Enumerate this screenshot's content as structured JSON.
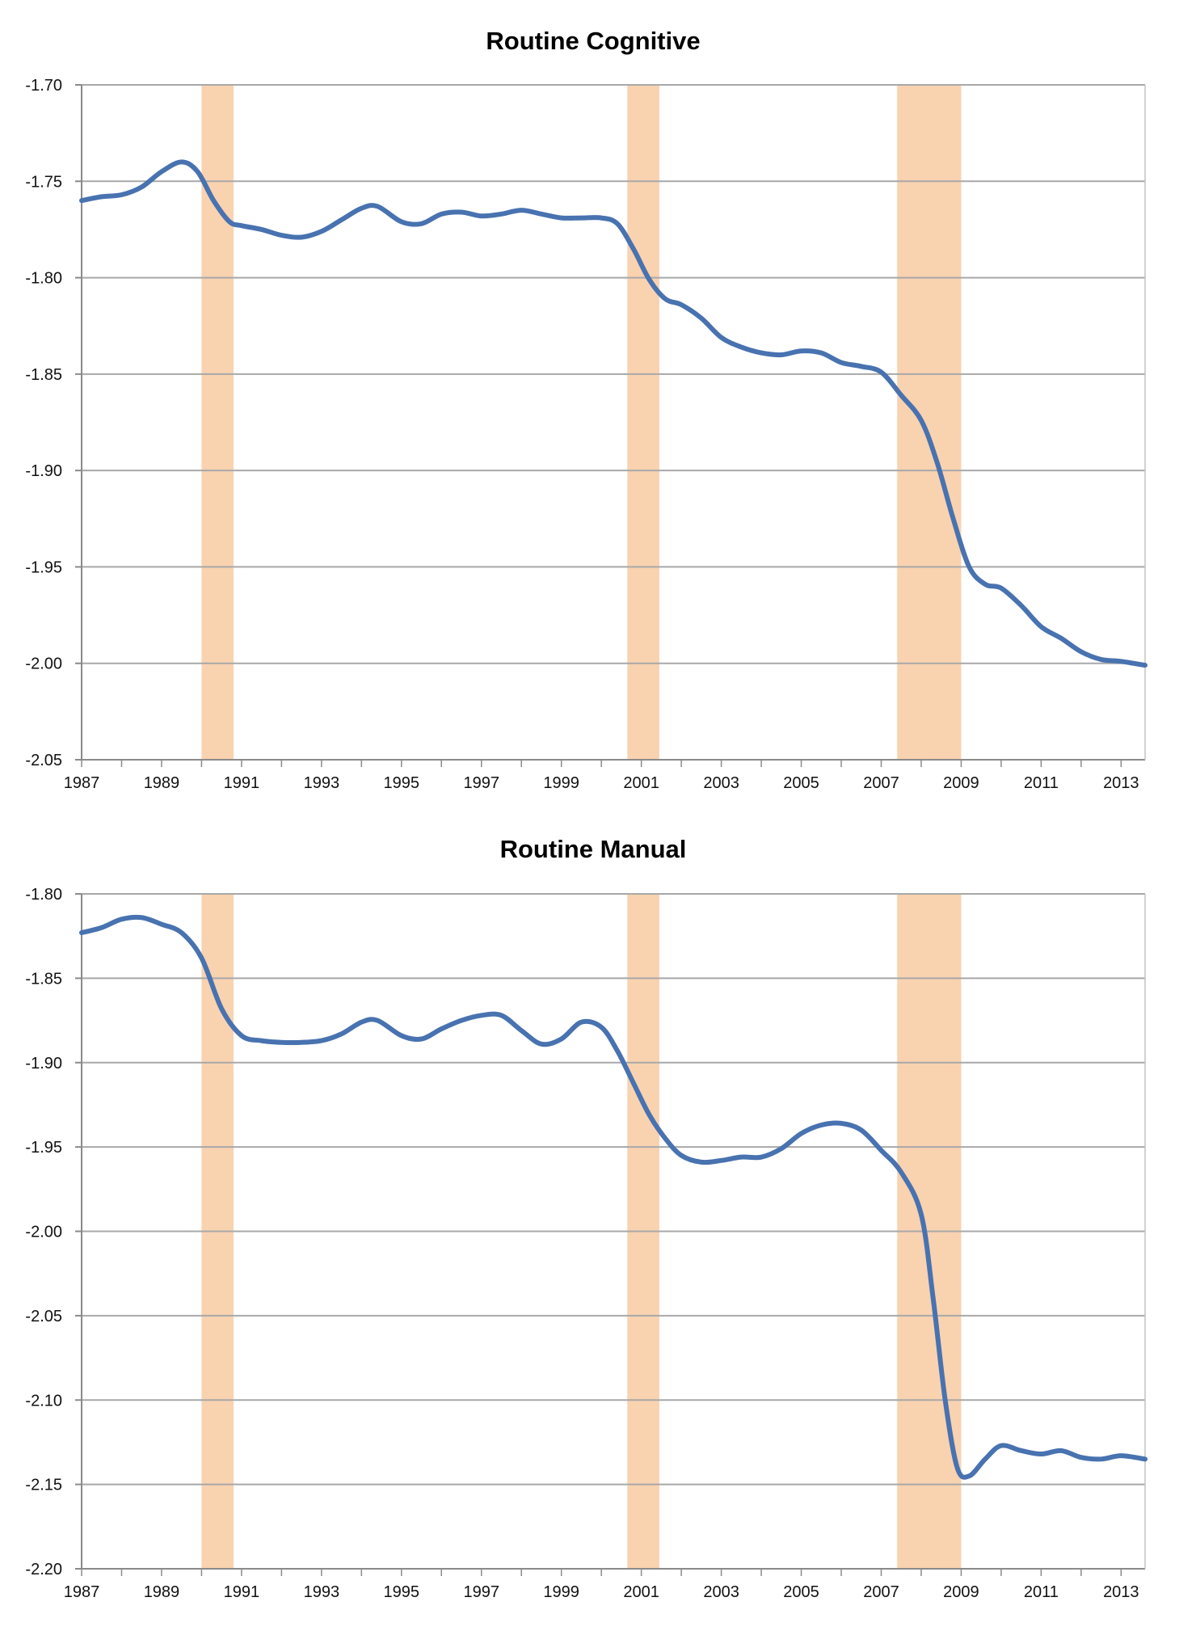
{
  "charts": [
    {
      "type": "line",
      "title": "Routine Cognitive",
      "xlabel": "",
      "ylabel": "",
      "xlim": [
        1987,
        2013.6
      ],
      "ylim": [
        -2.05,
        -1.7
      ],
      "yticks": [
        -1.7,
        -1.75,
        -1.8,
        -1.85,
        -1.9,
        -1.95,
        -2.0,
        -2.05
      ],
      "ytick_labels": [
        "-1.70",
        "-1.75",
        "-1.80",
        "-1.85",
        "-1.90",
        "-1.95",
        "-2.00",
        "-2.05"
      ],
      "xticks": [
        1987,
        1989,
        1991,
        1993,
        1995,
        1997,
        1999,
        2001,
        2003,
        2005,
        2007,
        2009,
        2011,
        2013
      ],
      "xtick_labels": [
        "1987",
        "1989",
        "1991",
        "1993",
        "1995",
        "1997",
        "1999",
        "2001",
        "2003",
        "2005",
        "2007",
        "2009",
        "2011",
        "2013"
      ],
      "recessions": [
        [
          1990.0,
          1990.8
        ],
        [
          2000.65,
          2001.45
        ],
        [
          2007.4,
          2009.0
        ]
      ],
      "line_color": "#4872b0",
      "band_color": "#f9d2b0",
      "series": [
        {
          "name": "Routine Cognitive",
          "x": [
            1987,
            1987.5,
            1988,
            1988.5,
            1989,
            1989.5,
            1989.9,
            1990.3,
            1990.7,
            1991,
            1991.5,
            1992,
            1992.5,
            1993,
            1993.5,
            1994,
            1994.4,
            1995,
            1995.5,
            1996,
            1996.5,
            1997,
            1997.5,
            1998,
            1998.5,
            1999,
            1999.5,
            2000,
            2000.4,
            2000.8,
            2001.2,
            2001.6,
            2002,
            2002.5,
            2003,
            2003.5,
            2004,
            2004.5,
            2005,
            2005.5,
            2006,
            2006.5,
            2007,
            2007.5,
            2008,
            2008.4,
            2008.8,
            2009.2,
            2009.6,
            2010,
            2010.5,
            2011,
            2011.5,
            2012,
            2012.5,
            2013,
            2013.6
          ],
          "y": [
            -1.76,
            -1.758,
            -1.757,
            -1.753,
            -1.745,
            -1.74,
            -1.745,
            -1.76,
            -1.771,
            -1.773,
            -1.775,
            -1.778,
            -1.779,
            -1.776,
            -1.77,
            -1.764,
            -1.763,
            -1.771,
            -1.772,
            -1.767,
            -1.766,
            -1.768,
            -1.767,
            -1.765,
            -1.767,
            -1.769,
            -1.769,
            -1.769,
            -1.772,
            -1.785,
            -1.801,
            -1.811,
            -1.814,
            -1.821,
            -1.831,
            -1.836,
            -1.839,
            -1.84,
            -1.838,
            -1.839,
            -1.844,
            -1.846,
            -1.849,
            -1.861,
            -1.874,
            -1.896,
            -1.925,
            -1.95,
            -1.959,
            -1.961,
            -1.97,
            -1.981,
            -1.987,
            -1.994,
            -1.998,
            -1.999,
            -2.001
          ]
        }
      ]
    },
    {
      "type": "line",
      "title": "Routine Manual",
      "xlabel": "",
      "ylabel": "",
      "xlim": [
        1987,
        2013.6
      ],
      "ylim": [
        -2.2,
        -1.8
      ],
      "yticks": [
        -1.8,
        -1.85,
        -1.9,
        -1.95,
        -2.0,
        -2.05,
        -2.1,
        -2.15,
        -2.2
      ],
      "ytick_labels": [
        "-1.80",
        "-1.85",
        "-1.90",
        "-1.95",
        "-2.00",
        "-2.05",
        "-2.10",
        "-2.15",
        "-2.20"
      ],
      "xticks": [
        1987,
        1989,
        1991,
        1993,
        1995,
        1997,
        1999,
        2001,
        2003,
        2005,
        2007,
        2009,
        2011,
        2013
      ],
      "xtick_labels": [
        "1987",
        "1989",
        "1991",
        "1993",
        "1995",
        "1997",
        "1999",
        "2001",
        "2003",
        "2005",
        "2007",
        "2009",
        "2011",
        "2013"
      ],
      "recessions": [
        [
          1990.0,
          1990.8
        ],
        [
          2000.65,
          2001.45
        ],
        [
          2007.4,
          2009.0
        ]
      ],
      "line_color": "#4872b0",
      "band_color": "#f9d2b0",
      "series": [
        {
          "name": "Routine Manual",
          "x": [
            1987,
            1987.5,
            1988,
            1988.5,
            1989,
            1989.5,
            1990,
            1990.5,
            1991,
            1991.5,
            1992,
            1992.5,
            1993,
            1993.5,
            1994,
            1994.4,
            1995,
            1995.5,
            1996,
            1996.5,
            1997,
            1997.5,
            1998,
            1998.5,
            1999,
            1999.5,
            2000,
            2000.4,
            2000.8,
            2001.2,
            2001.6,
            2002,
            2002.5,
            2003,
            2003.5,
            2004,
            2004.5,
            2005,
            2005.5,
            2006,
            2006.5,
            2007,
            2007.5,
            2008,
            2008.3,
            2008.6,
            2008.9,
            2009.2,
            2009.6,
            2010,
            2010.5,
            2011,
            2011.5,
            2012,
            2012.5,
            2013,
            2013.6
          ],
          "y": [
            -1.823,
            -1.82,
            -1.815,
            -1.814,
            -1.818,
            -1.823,
            -1.838,
            -1.868,
            -1.884,
            -1.887,
            -1.888,
            -1.888,
            -1.887,
            -1.883,
            -1.876,
            -1.875,
            -1.884,
            -1.886,
            -1.88,
            -1.875,
            -1.872,
            -1.872,
            -1.881,
            -1.889,
            -1.886,
            -1.876,
            -1.879,
            -1.893,
            -1.912,
            -1.931,
            -1.945,
            -1.955,
            -1.959,
            -1.958,
            -1.956,
            -1.956,
            -1.951,
            -1.942,
            -1.937,
            -1.936,
            -1.94,
            -1.952,
            -1.965,
            -1.99,
            -2.04,
            -2.1,
            -2.14,
            -2.145,
            -2.135,
            -2.127,
            -2.13,
            -2.132,
            -2.13,
            -2.134,
            -2.135,
            -2.133,
            -2.135
          ]
        }
      ]
    }
  ]
}
